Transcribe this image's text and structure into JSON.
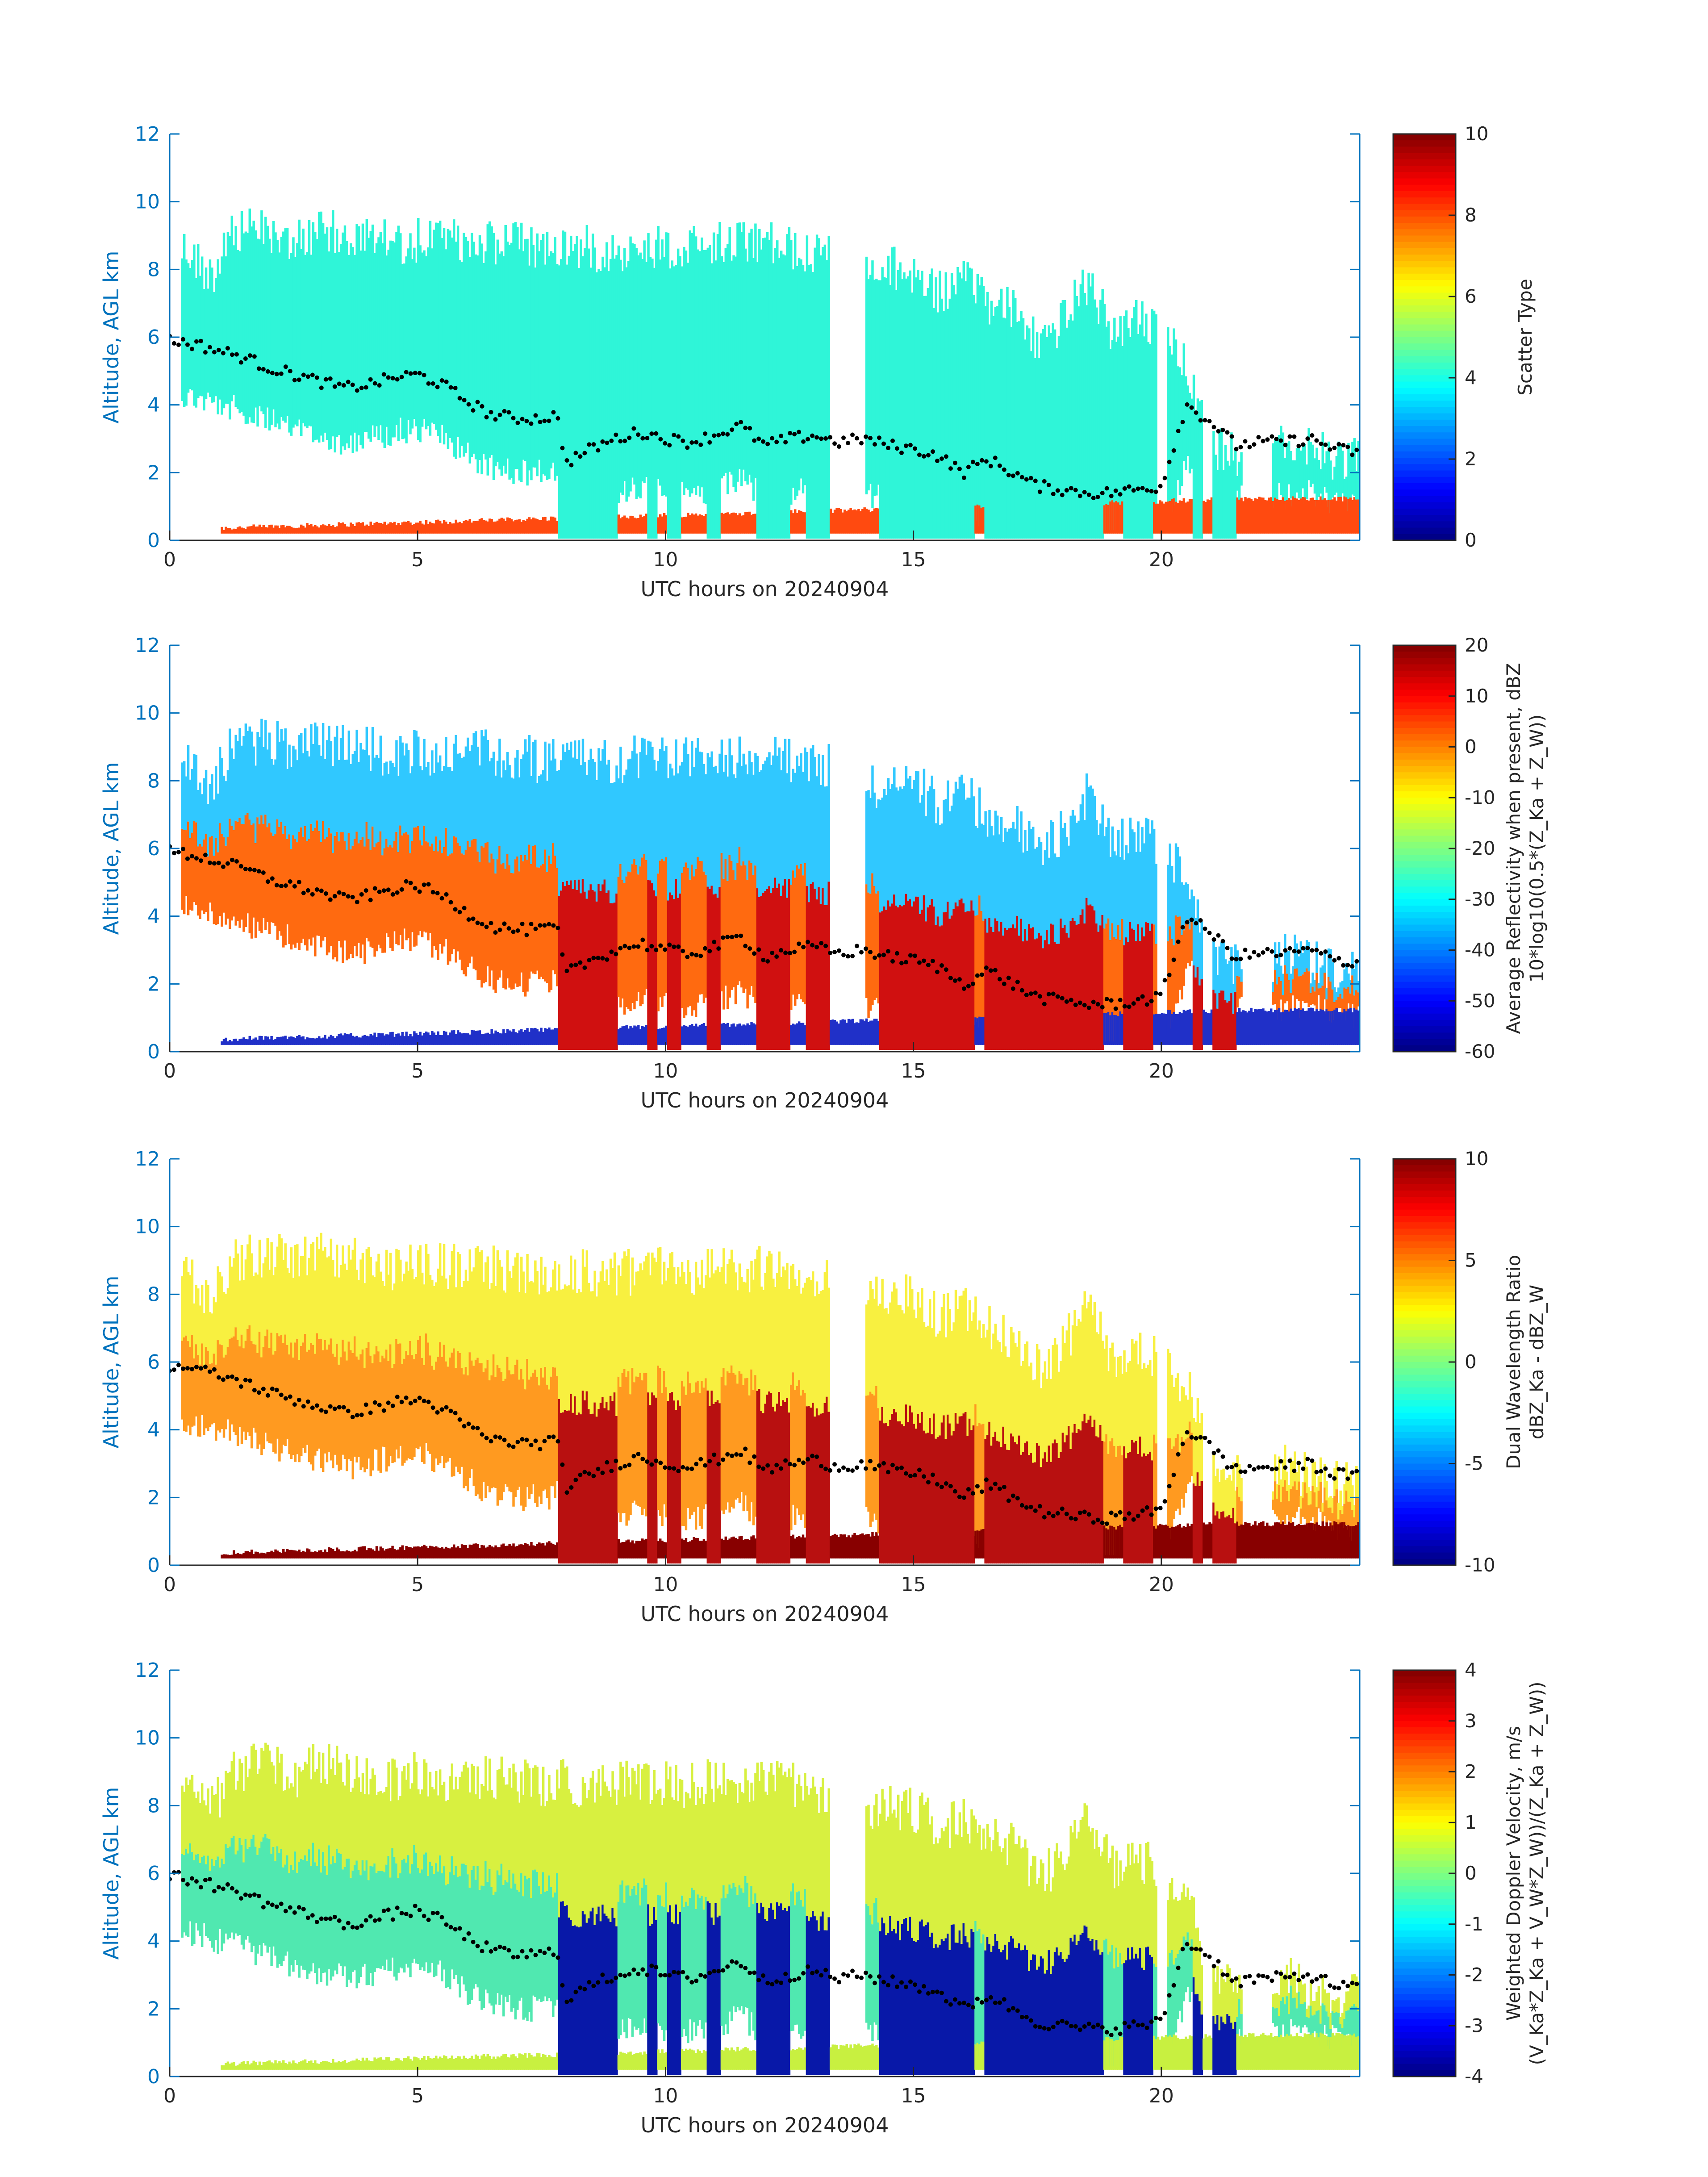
{
  "chart_data": [
    {
      "type": "heatmap",
      "xlabel": "UTC hours on 20240904",
      "ylabel": "Altitude, AGL km",
      "xlim": [
        0,
        24
      ],
      "ylim": [
        0,
        12
      ],
      "x_ticks": [
        "0",
        "5",
        "10",
        "15",
        "20"
      ],
      "y_ticks": [
        "0",
        "2",
        "4",
        "6",
        "8",
        "10",
        "12"
      ],
      "colorbar": {
        "label_lines": [
          "Scatter Type"
        ],
        "ticks": [
          "0",
          "2",
          "4",
          "6",
          "8",
          "10"
        ],
        "range": [
          0,
          10
        ]
      },
      "field_colors": {
        "cloud": "#2ff5d8",
        "low": "#ff4a10"
      },
      "overlay_color": "#000000"
    },
    {
      "type": "heatmap",
      "xlabel": "UTC hours on 20240904",
      "ylabel": "Altitude, AGL km",
      "xlim": [
        0,
        24
      ],
      "ylim": [
        0,
        12
      ],
      "x_ticks": [
        "0",
        "5",
        "10",
        "15",
        "20"
      ],
      "y_ticks": [
        "0",
        "2",
        "4",
        "6",
        "8",
        "10",
        "12"
      ],
      "colorbar": {
        "label_lines": [
          "Average Reflectivity when present, dBZ",
          "10*log10(0.5*(Z_Ka + Z_W))"
        ],
        "ticks": [
          "-60",
          "-50",
          "-40",
          "-30",
          "-20",
          "-10",
          "0",
          "10",
          "20"
        ],
        "range": [
          -60,
          20
        ]
      },
      "field_colors": {
        "cloud_top": "#30c8ff",
        "cloud_core": "#ff6a10",
        "precip": "#d01010",
        "low": "#2030c8"
      },
      "overlay_color": "#000000"
    },
    {
      "type": "heatmap",
      "xlabel": "UTC hours on 20240904",
      "ylabel": "Altitude, AGL km",
      "xlim": [
        0,
        24
      ],
      "ylim": [
        0,
        12
      ],
      "x_ticks": [
        "0",
        "5",
        "10",
        "15",
        "20"
      ],
      "y_ticks": [
        "0",
        "2",
        "4",
        "6",
        "8",
        "10",
        "12"
      ],
      "colorbar": {
        "label_lines": [
          "Dual Wavelength Ratio",
          "dBZ_Ka - dBZ_W"
        ],
        "ticks": [
          "-10",
          "-5",
          "0",
          "5",
          "10"
        ],
        "range": [
          -10,
          10
        ]
      },
      "field_colors": {
        "cloud_top": "#f8f040",
        "cloud_core": "#ff9a20",
        "precip": "#b81010",
        "low": "#880000"
      },
      "overlay_color": "#000000"
    },
    {
      "type": "heatmap",
      "xlabel": "UTC hours on 20240904",
      "ylabel": "Altitude, AGL km",
      "xlim": [
        0,
        24
      ],
      "ylim": [
        0,
        12
      ],
      "x_ticks": [
        "0",
        "5",
        "10",
        "15",
        "20"
      ],
      "y_ticks": [
        "0",
        "2",
        "4",
        "6",
        "8",
        "10",
        "12"
      ],
      "colorbar": {
        "label_lines": [
          "Weighted Doppler Velocity, m/s",
          "(V_Ka*Z_Ka + V_W*Z_W))/(Z_Ka + Z_W))"
        ],
        "ticks": [
          "-4",
          "-3",
          "-2",
          "-1",
          "0",
          "1",
          "2",
          "3",
          "4"
        ],
        "range": [
          -4,
          4
        ]
      },
      "field_colors": {
        "cloud_top": "#d8f040",
        "cloud_core": "#50e8b0",
        "precip": "#0818a8",
        "low": "#c8f040"
      },
      "overlay_color": "#000000"
    }
  ],
  "series_shared": {
    "cloud_top_km": {
      "x": [
        0,
        0.3,
        0.8,
        1.2,
        1.5,
        2.0,
        2.5,
        3.0,
        3.3,
        3.6,
        4.0,
        4.5,
        5.0,
        5.5,
        6.0,
        6.5,
        7.0,
        7.5,
        8.0,
        8.5,
        9.0,
        9.5,
        10.0,
        10.5,
        11.0,
        11.5,
        12.0,
        12.5,
        13.0,
        13.5,
        14.0,
        14.5,
        15.0,
        15.5,
        16.0,
        16.5,
        17.0,
        17.5,
        18.0,
        18.5,
        19.0,
        19.5,
        20.0,
        20.5,
        21.0,
        21.5,
        22.0,
        22.5,
        23.0,
        23.5,
        24.0
      ],
      "y": [
        9.2,
        9.3,
        8.5,
        9.6,
        9.8,
        9.9,
        9.6,
        9.9,
        9.8,
        9.7,
        9.6,
        9.5,
        9.6,
        9.5,
        9.6,
        9.5,
        9.4,
        9.3,
        9.4,
        9.3,
        9.3,
        9.4,
        9.4,
        9.3,
        9.5,
        9.4,
        9.5,
        9.3,
        9.2,
        9.0,
        8.5,
        8.7,
        8.6,
        8.0,
        8.3,
        7.7,
        7.5,
        6.5,
        7.2,
        8.3,
        6.8,
        7.2,
        6.6,
        6.0,
        3.5,
        3.3,
        3.2,
        3.6,
        3.3,
        3.1,
        3.1
      ]
    },
    "overlay_km": {
      "x": [
        0,
        0.5,
        1.0,
        1.5,
        2.0,
        2.5,
        3.0,
        3.5,
        4.0,
        4.5,
        5.0,
        5.5,
        6.0,
        6.5,
        7.0,
        7.5,
        7.8,
        8.0,
        8.5,
        9.0,
        9.5,
        10.0,
        10.5,
        11.0,
        11.5,
        12.0,
        12.5,
        13.0,
        13.5,
        14.0,
        14.5,
        15.0,
        15.5,
        16.0,
        16.5,
        17.0,
        17.5,
        18.0,
        18.5,
        19.0,
        19.5,
        20.0,
        20.5,
        21.0,
        21.5,
        22.0,
        22.5,
        23.0,
        23.5,
        24.0
      ],
      "y": [
        5.9,
        5.8,
        5.6,
        5.4,
        5.1,
        4.9,
        4.7,
        4.5,
        4.6,
        4.8,
        4.9,
        4.6,
        4.1,
        3.7,
        3.6,
        3.6,
        3.7,
        2.3,
        2.7,
        3.0,
        3.2,
        3.0,
        2.9,
        3.1,
        3.4,
        2.8,
        3.0,
        3.1,
        2.9,
        3.0,
        2.8,
        2.7,
        2.5,
        2.0,
        2.4,
        2.0,
        1.6,
        1.5,
        1.4,
        1.4,
        1.5,
        1.6,
        4.0,
        3.5,
        2.8,
        2.9,
        2.9,
        3.0,
        2.7,
        2.6
      ]
    }
  }
}
